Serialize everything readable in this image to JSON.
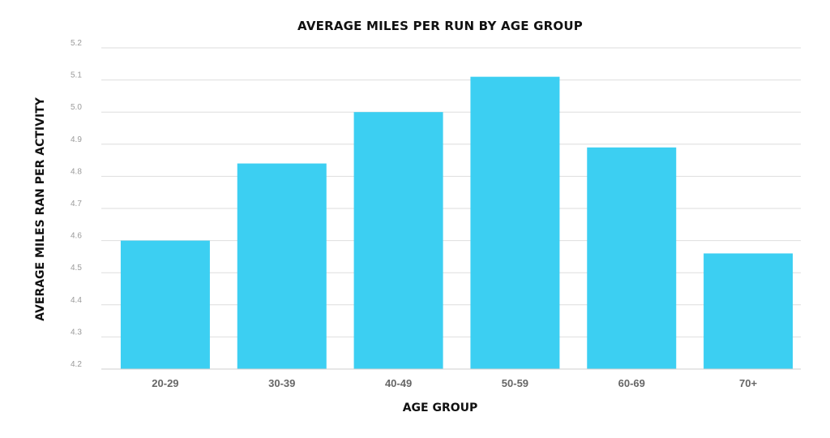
{
  "chart_data": {
    "type": "bar",
    "title": "AVERAGE MILES PER RUN BY AGE GROUP",
    "xlabel": "AGE GROUP",
    "ylabel": "AVERAGE MILES RAN PER ACTIVITY",
    "categories": [
      "20-29",
      "30-39",
      "40-49",
      "50-59",
      "60-69",
      "70+"
    ],
    "values": [
      4.6,
      4.84,
      5.0,
      5.11,
      4.89,
      4.56
    ],
    "ylim": [
      4.2,
      5.2
    ],
    "yticks": [
      "4.2",
      "4.3",
      "4.4",
      "4.5",
      "4.6",
      "4.7",
      "4.8",
      "4.9",
      "5.0",
      "5.1",
      "5.2"
    ],
    "grid": true,
    "legend": "none",
    "bar_color": "#3ccff2"
  }
}
